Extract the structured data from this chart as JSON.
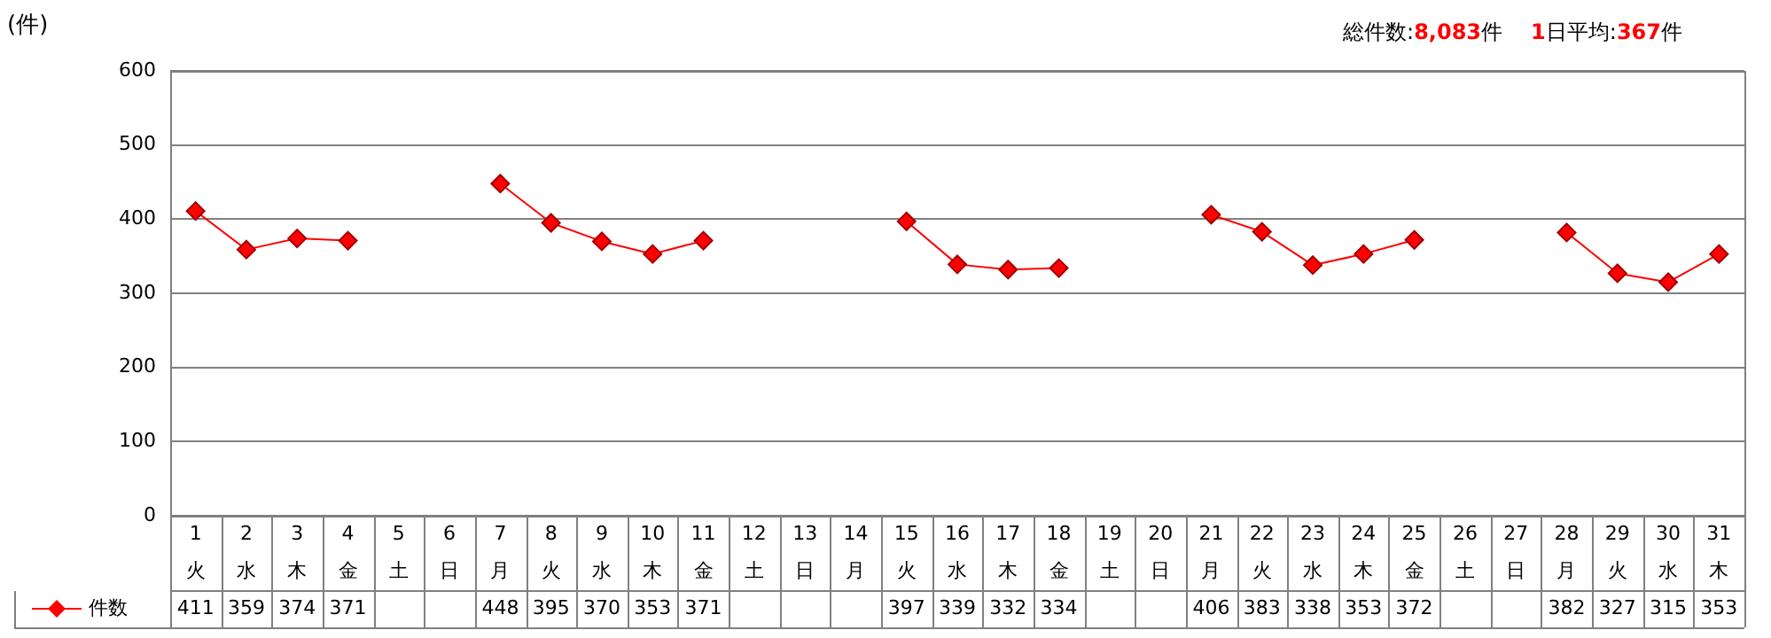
{
  "chart_data": {
    "type": "line",
    "ylabel": "(件)",
    "annotations": [
      "総件数:8,083件",
      "1日平均:367件"
    ],
    "categories": [
      "1\n火",
      "2\n水",
      "3\n木",
      "4\n金",
      "5\n土",
      "6\n日",
      "7\n月",
      "8\n火",
      "9\n水",
      "10\n木",
      "11\n金",
      "12\n土",
      "13\n日",
      "14\n月",
      "15\n火",
      "16\n水",
      "17\n木",
      "18\n金",
      "19\n土",
      "20\n日",
      "21\n月",
      "22\n火",
      "23\n水",
      "24\n木",
      "25\n金",
      "26\n土",
      "27\n日",
      "28\n月",
      "29\n火",
      "30\n水",
      "31\n木"
    ],
    "series": [
      {
        "name": "件数",
        "color": "#ff0000",
        "values": [
          411,
          359,
          374,
          371,
          null,
          null,
          448,
          395,
          370,
          353,
          371,
          null,
          null,
          null,
          397,
          339,
          332,
          334,
          null,
          null,
          406,
          383,
          338,
          353,
          372,
          null,
          null,
          382,
          327,
          315,
          353
        ]
      }
    ],
    "ylim": [
      0,
      600
    ],
    "yticks": [
      0,
      100,
      200,
      300,
      400,
      500,
      600
    ],
    "grid": "y",
    "marker": "diamond",
    "line_style": "solid",
    "legend": "bottom left",
    "data_labels": true
  }
}
